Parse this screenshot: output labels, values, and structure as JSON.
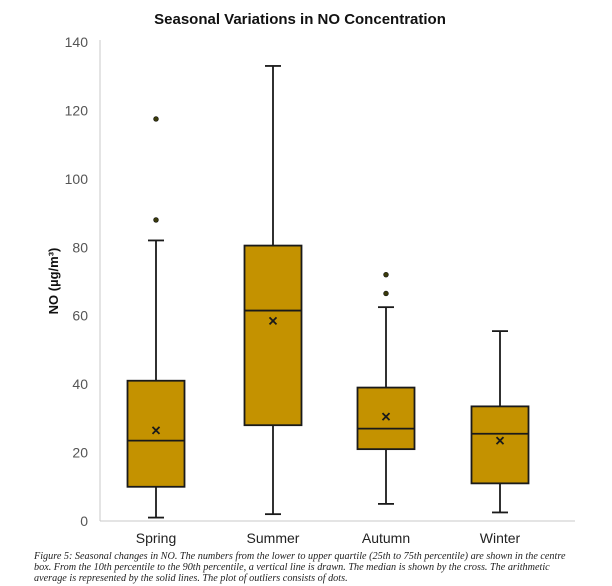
{
  "chart_data": {
    "type": "box",
    "title": "Seasonal Variations in NO Concentration",
    "xlabel": "",
    "ylabel": "NO (µg/m³)",
    "ylim": [
      0,
      140
    ],
    "yticks": [
      0,
      20,
      40,
      60,
      80,
      100,
      120,
      140
    ],
    "grid": false,
    "legend": "none",
    "categories": [
      "Spring",
      "Summer",
      "Autumn",
      "Winter"
    ],
    "boxes": [
      {
        "category": "Spring",
        "whisker_low": 1,
        "q1": 10,
        "median": 23.5,
        "q3": 41,
        "whisker_high": 82,
        "mean": 26.5,
        "outliers": [
          88,
          117.5
        ]
      },
      {
        "category": "Summer",
        "whisker_low": 2,
        "q1": 28,
        "median": 61.5,
        "q3": 80.5,
        "whisker_high": 133,
        "mean": 58.5,
        "outliers": []
      },
      {
        "category": "Autumn",
        "whisker_low": 5,
        "q1": 21,
        "median": 27,
        "q3": 39,
        "whisker_high": 62.5,
        "mean": 30.5,
        "outliers": [
          66.5,
          72
        ]
      },
      {
        "category": "Winter",
        "whisker_low": 2.5,
        "q1": 11,
        "median": 25.5,
        "q3": 33.5,
        "whisker_high": 55.5,
        "mean": 23.5,
        "outliers": []
      }
    ],
    "colors": {
      "box_fill": "#C49200",
      "stroke": "#1a1a1a",
      "outlier_fill": "#3a3a0a",
      "axis": "#c8c8c8",
      "tick_label": "#555555"
    }
  },
  "caption": "Figure 5: Seasonal changes in NO. The numbers from the lower to upper quartile (25th to 75th percentile) are shown in the centre box. From the 10th percentile to the 90th percentile, a vertical line is drawn. The median is shown by the cross. The arithmetic average is represented by the solid lines. The plot of outliers consists of dots."
}
